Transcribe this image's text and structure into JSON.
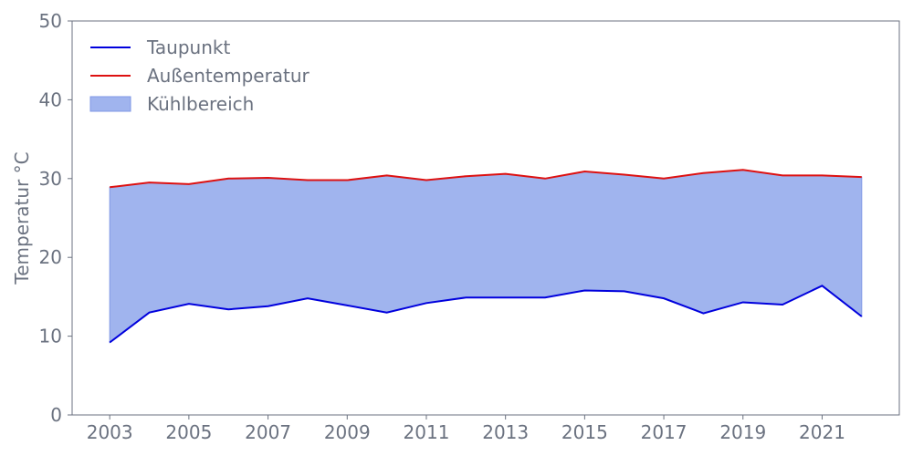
{
  "chart_data": {
    "type": "line",
    "title": "",
    "xlabel": "",
    "ylabel": "Temperatur °C",
    "x": [
      2003,
      2004,
      2005,
      2006,
      2007,
      2008,
      2009,
      2010,
      2011,
      2012,
      2013,
      2014,
      2015,
      2016,
      2017,
      2018,
      2019,
      2020,
      2021,
      2022
    ],
    "x_ticks": [
      "2003",
      "2005",
      "2007",
      "2009",
      "2011",
      "2013",
      "2015",
      "2017",
      "2019",
      "2021"
    ],
    "y_ticks": [
      "0",
      "10",
      "20",
      "30",
      "40",
      "50"
    ],
    "xlim": [
      2002.05,
      2022.95
    ],
    "ylim": [
      0,
      50
    ],
    "grid": false,
    "legend_position": "top-left",
    "series": [
      {
        "name": "Taupunkt",
        "color": "#0000dd",
        "values": [
          9.2,
          13.0,
          14.1,
          13.4,
          13.8,
          14.8,
          13.9,
          13.0,
          14.2,
          14.9,
          14.9,
          14.9,
          15.8,
          15.7,
          14.8,
          12.9,
          14.3,
          14.0,
          16.4,
          12.5
        ]
      },
      {
        "name": "Außentemperatur",
        "color": "#dd1111",
        "values": [
          28.9,
          29.5,
          29.3,
          30.0,
          30.1,
          29.8,
          29.8,
          30.4,
          29.8,
          30.3,
          30.6,
          30.0,
          30.9,
          30.5,
          30.0,
          30.7,
          31.1,
          30.4,
          30.4,
          30.2
        ]
      }
    ],
    "fill_between": {
      "name": "Kühlbereich",
      "color": "#a0b4ee",
      "edge_color": "#7f97e6",
      "lower_series": "Taupunkt",
      "upper_series": "Außentemperatur"
    },
    "axis_color": "#6b7280"
  }
}
